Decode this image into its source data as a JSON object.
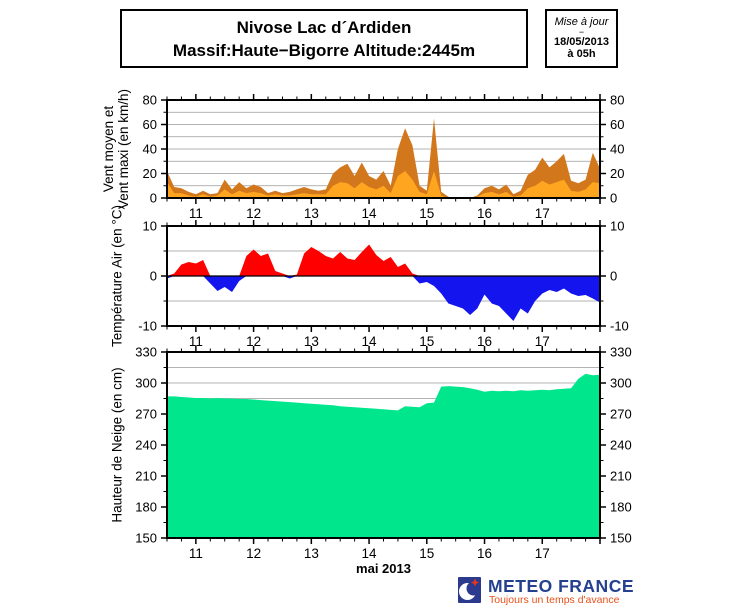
{
  "header": {
    "title_line1": "Nivose Lac d´Ardiden",
    "title_line2": "Massif:Haute−Bigorre Altitude:2445m",
    "update_label": "Mise à jour",
    "update_dash": "−",
    "update_date": "18/05/2013",
    "update_time": "à 05h"
  },
  "footer": {
    "brand": "METEO FRANCE",
    "tagline": "Toujours un temps d'avance",
    "brand_color": "#24418F",
    "tagline_color": "#E8511A",
    "logo_blue": "#2B3A8C",
    "logo_red": "#E8351C"
  },
  "chart_data": [
    {
      "type": "area",
      "name": "wind",
      "ylabel_lines": [
        "Vent moyen et",
        "Vent maxi (en km/h)"
      ],
      "ylim": [
        0,
        80
      ],
      "ytick_major": [
        0,
        20,
        40,
        60,
        80
      ],
      "ytick_minor_step": 10,
      "baseline": 0,
      "zero_line_black": false,
      "x_domain": [
        10.5,
        18.0
      ],
      "x_start": 10.5,
      "x_step": 0.125,
      "xtick_values": [
        11,
        12,
        13,
        14,
        15,
        16,
        17
      ],
      "xtick_labels": [
        "11",
        "12",
        "13",
        "14",
        "15",
        "16",
        "17"
      ],
      "xtick_minor_step": 0.25,
      "grid_color": "#9a9a9a",
      "series": [
        {
          "name": "Vent maxi (en km/h)",
          "color": "#D2771B",
          "values": [
            22,
            9,
            8,
            5,
            3,
            6,
            3,
            4,
            15,
            7,
            13,
            8,
            11,
            9,
            4,
            6,
            4,
            5,
            7,
            9,
            7,
            6,
            7,
            20,
            25,
            28,
            18,
            29,
            18,
            15,
            22,
            10,
            40,
            57,
            43,
            10,
            6,
            65,
            5,
            1,
            0,
            0,
            0,
            2,
            8,
            10,
            7,
            11,
            3,
            6,
            19,
            23,
            33,
            25,
            30,
            36,
            14,
            12,
            15,
            37,
            24
          ]
        },
        {
          "name": "Vent moyen (en km/h)",
          "color": "#FFA51F",
          "values": [
            13,
            4,
            4,
            2,
            1,
            3,
            1,
            2,
            7,
            3,
            6,
            4,
            5,
            4,
            2,
            3,
            2,
            2,
            3,
            4,
            3,
            3,
            3,
            10,
            13,
            12,
            8,
            13,
            9,
            7,
            10,
            4,
            18,
            22,
            15,
            5,
            3,
            22,
            2,
            0,
            0,
            0,
            0,
            1,
            4,
            5,
            3,
            5,
            1,
            2,
            8,
            10,
            14,
            11,
            13,
            15,
            6,
            5,
            7,
            13,
            12
          ]
        }
      ]
    },
    {
      "type": "area",
      "name": "temperature",
      "ylabel_lines": [
        "Température Air (en °C)"
      ],
      "ylim": [
        -10,
        10
      ],
      "ytick_major": [
        -10,
        0,
        10
      ],
      "ytick_minor_step": 5,
      "baseline": 0,
      "zero_line_black": true,
      "x_domain": [
        10.5,
        18.0
      ],
      "x_start": 10.5,
      "x_step": 0.125,
      "xtick_values": [
        11,
        12,
        13,
        14,
        15,
        16,
        17
      ],
      "xtick_labels": [
        "11",
        "12",
        "13",
        "14",
        "15",
        "16",
        "17"
      ],
      "xtick_minor_step": 0.25,
      "grid_color": "#9a9a9a",
      "series": [
        {
          "name": "Température Air (en °C)",
          "pos_color": "#FF0000",
          "neg_color": "#1414EE",
          "values": [
            -0.5,
            0.5,
            2.3,
            2.8,
            2.5,
            3.2,
            -1.5,
            -3.0,
            -2.2,
            -3.2,
            -1.0,
            4.0,
            5.3,
            4.0,
            4.5,
            1.0,
            0.5,
            -0.5,
            0.3,
            4.5,
            5.8,
            5.0,
            4.0,
            3.5,
            4.8,
            3.5,
            3.2,
            4.8,
            6.3,
            4.2,
            3.0,
            3.8,
            1.8,
            2.5,
            0.5,
            -1.5,
            -1.2,
            -2.0,
            -3.5,
            -5.5,
            -6.0,
            -6.5,
            -7.8,
            -6.5,
            -3.7,
            -5.5,
            -6.0,
            -7.5,
            -9.0,
            -6.5,
            -7.5,
            -5.0,
            -3.5,
            -2.8,
            -3.2,
            -2.5,
            -3.5,
            -4.0,
            -3.8,
            -4.5,
            -5.3
          ]
        }
      ]
    },
    {
      "type": "area",
      "name": "snow",
      "ylabel_lines": [
        "Hauteur de Neige (en cm)"
      ],
      "ylim": [
        150,
        330
      ],
      "ytick_major": [
        150,
        180,
        210,
        240,
        270,
        300,
        330
      ],
      "ytick_minor_step": 15,
      "baseline": 150,
      "zero_line_black": false,
      "x_domain": [
        10.5,
        18.0
      ],
      "x_start": 10.5,
      "x_step": 0.125,
      "xtick_values": [
        11,
        12,
        13,
        14,
        15,
        16,
        17
      ],
      "xtick_labels": [
        "11",
        "12",
        "13",
        "14",
        "15",
        "16",
        "17"
      ],
      "xtick_minor_step": 0.25,
      "xlabel": "mai 2013",
      "grid_color": "#9a9a9a",
      "series": [
        {
          "name": "Hauteur de Neige (en cm)",
          "color": "#00E68C",
          "values": [
            287,
            287,
            286.5,
            286,
            285.5,
            285.5,
            285,
            285.5,
            285,
            285,
            284.5,
            284.5,
            284,
            283.5,
            283,
            282.5,
            282,
            281.5,
            281,
            280.5,
            280,
            279.5,
            279,
            278.5,
            277.5,
            277,
            276.5,
            276,
            275.5,
            275,
            274.5,
            274,
            273.5,
            277.5,
            277,
            276.5,
            280.5,
            281,
            296.5,
            297,
            296.5,
            296,
            295,
            293.5,
            291.5,
            292.5,
            292,
            292.5,
            292,
            293,
            292.5,
            293,
            293.5,
            293,
            294,
            294.5,
            295,
            304,
            309,
            307.5,
            308
          ]
        }
      ]
    }
  ]
}
